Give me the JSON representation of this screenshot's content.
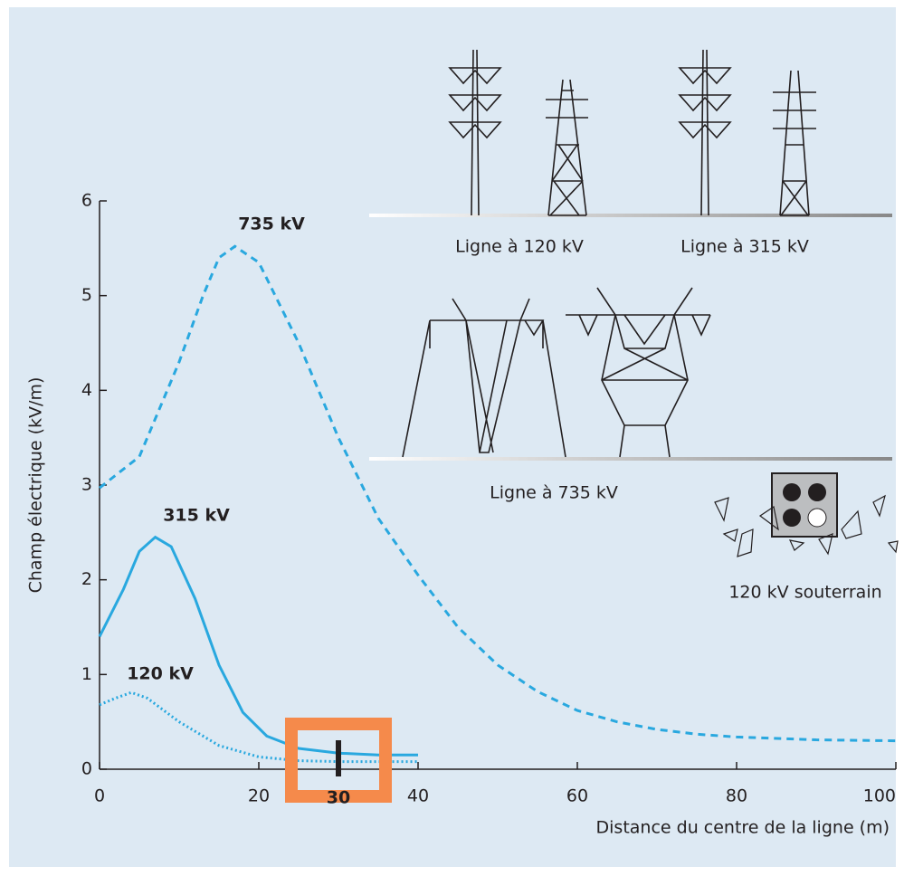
{
  "chart_data": {
    "type": "line",
    "xlabel": "Distance du centre de la ligne (m)",
    "ylabel": "Champ électrique (kV/m)",
    "xlim": [
      0,
      100
    ],
    "xticks": [
      0,
      20,
      40,
      60,
      80,
      100
    ],
    "ylim": [
      0,
      6
    ],
    "yticks": [
      0,
      1,
      2,
      3,
      4,
      5,
      6
    ],
    "series": [
      {
        "name": "735 kV",
        "color": "#29a8df",
        "style": "dashed",
        "x": [
          0,
          5,
          10,
          13,
          15,
          17,
          20,
          25,
          30,
          35,
          40,
          45,
          50,
          55,
          60,
          65,
          70,
          75,
          80,
          90,
          100
        ],
        "values": [
          2.97,
          3.3,
          4.3,
          5.0,
          5.4,
          5.52,
          5.35,
          4.5,
          3.5,
          2.65,
          2.05,
          1.5,
          1.1,
          0.82,
          0.62,
          0.5,
          0.42,
          0.37,
          0.34,
          0.31,
          0.3
        ]
      },
      {
        "name": "315 kV",
        "color": "#29a8df",
        "style": "solid",
        "x": [
          0,
          3,
          5,
          7,
          9,
          12,
          15,
          18,
          21,
          25,
          30,
          35,
          40
        ],
        "values": [
          1.4,
          1.9,
          2.3,
          2.45,
          2.35,
          1.8,
          1.1,
          0.6,
          0.35,
          0.22,
          0.17,
          0.15,
          0.15
        ]
      },
      {
        "name": "120 kV",
        "color": "#29a8df",
        "style": "dotted",
        "x": [
          0,
          2,
          4,
          6,
          10,
          15,
          20,
          25,
          30,
          35,
          40
        ],
        "values": [
          0.68,
          0.75,
          0.81,
          0.75,
          0.5,
          0.25,
          0.13,
          0.09,
          0.08,
          0.08,
          0.08
        ]
      }
    ],
    "highlight": {
      "x": 30,
      "color": "#f58a4b"
    },
    "illustrations": [
      "Ligne à 120 kV",
      "Ligne à 315 kV",
      "Ligne à 735 kV",
      "120 kV souterrain"
    ]
  }
}
